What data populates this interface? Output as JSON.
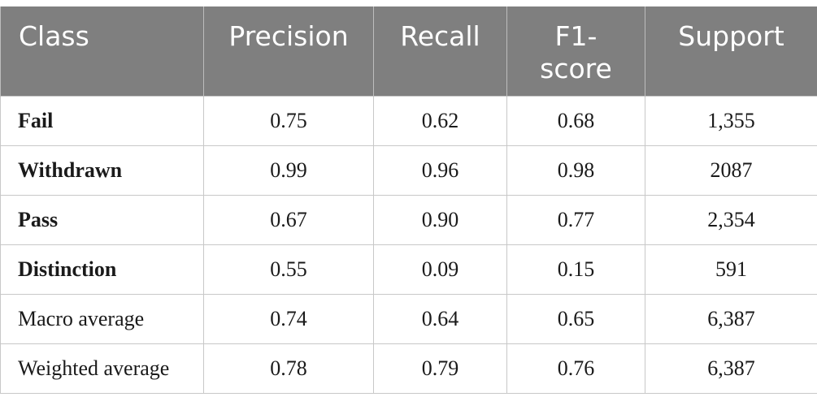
{
  "table": {
    "headers": [
      "Class",
      "Precision",
      "Recall",
      "F1-\nscore",
      "Support"
    ],
    "rows": [
      {
        "class": "Fail",
        "bold": true,
        "precision": "0.75",
        "recall": "0.62",
        "f1": "0.68",
        "support": "1,355"
      },
      {
        "class": "Withdrawn",
        "bold": true,
        "precision": "0.99",
        "recall": "0.96",
        "f1": "0.98",
        "support": "2087"
      },
      {
        "class": "Pass",
        "bold": true,
        "precision": "0.67",
        "recall": "0.90",
        "f1": "0.77",
        "support": "2,354"
      },
      {
        "class": "Distinction",
        "bold": true,
        "precision": "0.55",
        "recall": "0.09",
        "f1": "0.15",
        "support": "591"
      },
      {
        "class": "Macro average",
        "bold": false,
        "precision": "0.74",
        "recall": "0.64",
        "f1": "0.65",
        "support": "6,387"
      },
      {
        "class": "Weighted average",
        "bold": false,
        "precision": "0.78",
        "recall": "0.79",
        "f1": "0.76",
        "support": "6,387"
      }
    ]
  }
}
